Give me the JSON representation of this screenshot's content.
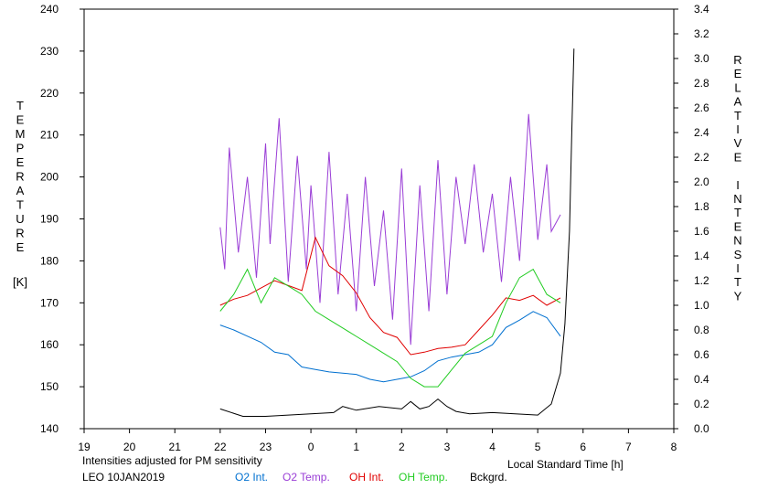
{
  "chart_data": {
    "type": "line",
    "title": "",
    "note": "Intensities adjusted for PM sensitivity",
    "station_date": "LEO 10JAN2019",
    "xlabel": "Local Standard Time [h]",
    "ylabel_left": [
      "T",
      "E",
      "M",
      "P",
      "E",
      "R",
      "A",
      "T",
      "U",
      "R",
      "E"
    ],
    "ylabel_left_unit": "[K]",
    "ylabel_right": [
      "R",
      "E",
      "L",
      "A",
      "T",
      "I",
      "V",
      "E",
      " ",
      "I",
      "N",
      "T",
      "E",
      "N",
      "S",
      "I",
      "T",
      "Y"
    ],
    "x_range": [
      19,
      32
    ],
    "x_tick_labels": [
      "19",
      "20",
      "21",
      "22",
      "23",
      "0",
      "1",
      "2",
      "3",
      "4",
      "5",
      "6",
      "7",
      "8"
    ],
    "ylim_left": [
      140,
      240
    ],
    "ylim_right": [
      0.0,
      3.4
    ],
    "y_left_ticks": [
      "140",
      "150",
      "160",
      "170",
      "180",
      "190",
      "200",
      "210",
      "220",
      "230",
      "240"
    ],
    "y_right_ticks": [
      "0.0",
      "0.2",
      "0.4",
      "0.6",
      "0.8",
      "1.0",
      "1.2",
      "1.4",
      "1.6",
      "1.8",
      "2.0",
      "2.2",
      "2.4",
      "2.6",
      "2.8",
      "3.0",
      "3.2",
      "3.4"
    ],
    "colors": {
      "o2_int": "#0070d0",
      "o2_temp": "#9a3ed6",
      "oh_int": "#e00000",
      "oh_temp": "#22cc22",
      "bckgrd": "#000000",
      "note": "#22cc22"
    },
    "series": [
      {
        "name": "O2 Int.",
        "axis": "right",
        "x": [
          22.0,
          22.3,
          22.6,
          22.9,
          23.2,
          23.5,
          23.8,
          24.1,
          24.4,
          24.7,
          25.0,
          25.3,
          25.6,
          25.9,
          26.2,
          26.5,
          26.8,
          27.1,
          27.4,
          27.7,
          28.0,
          28.3,
          28.6,
          28.9,
          29.2,
          29.5
        ],
        "y": [
          0.84,
          0.8,
          0.75,
          0.7,
          0.62,
          0.6,
          0.5,
          0.48,
          0.46,
          0.45,
          0.44,
          0.4,
          0.38,
          0.4,
          0.42,
          0.47,
          0.55,
          0.58,
          0.6,
          0.62,
          0.68,
          0.82,
          0.88,
          0.95,
          0.9,
          0.75
        ]
      },
      {
        "name": "O2 Temp.",
        "axis": "left",
        "x": [
          22.0,
          22.1,
          22.2,
          22.4,
          22.6,
          22.8,
          23.0,
          23.1,
          23.3,
          23.5,
          23.7,
          23.9,
          24.0,
          24.2,
          24.4,
          24.6,
          24.8,
          25.0,
          25.2,
          25.4,
          25.6,
          25.8,
          26.0,
          26.2,
          26.4,
          26.6,
          26.8,
          27.0,
          27.2,
          27.4,
          27.6,
          27.8,
          28.0,
          28.2,
          28.4,
          28.6,
          28.8,
          29.0,
          29.2,
          29.3,
          29.5
        ],
        "y": [
          188,
          178,
          207,
          182,
          200,
          176,
          208,
          184,
          214,
          175,
          205,
          178,
          198,
          170,
          206,
          172,
          196,
          168,
          200,
          174,
          192,
          166,
          202,
          160,
          198,
          168,
          204,
          172,
          200,
          184,
          203,
          182,
          196,
          175,
          200,
          180,
          215,
          185,
          203,
          187,
          191
        ]
      },
      {
        "name": "OH Int.",
        "axis": "right",
        "x": [
          22.0,
          22.3,
          22.6,
          22.9,
          23.2,
          23.5,
          23.8,
          24.1,
          24.4,
          24.7,
          25.0,
          25.3,
          25.6,
          25.9,
          26.2,
          26.5,
          26.8,
          27.1,
          27.4,
          27.7,
          28.0,
          28.3,
          28.6,
          28.9,
          29.2,
          29.5
        ],
        "y": [
          1.0,
          1.05,
          1.08,
          1.14,
          1.2,
          1.16,
          1.12,
          1.55,
          1.32,
          1.24,
          1.1,
          0.9,
          0.78,
          0.74,
          0.6,
          0.62,
          0.65,
          0.66,
          0.68,
          0.8,
          0.92,
          1.06,
          1.04,
          1.08,
          1.0,
          1.06
        ]
      },
      {
        "name": "OH Temp.",
        "axis": "left",
        "x": [
          22.0,
          22.3,
          22.6,
          22.9,
          23.2,
          23.5,
          23.8,
          24.1,
          24.4,
          24.7,
          25.0,
          25.3,
          25.6,
          25.9,
          26.2,
          26.5,
          26.8,
          27.1,
          27.4,
          27.7,
          28.0,
          28.3,
          28.6,
          28.9,
          29.2,
          29.5
        ],
        "y": [
          168,
          172,
          178,
          170,
          176,
          174,
          172,
          168,
          166,
          164,
          162,
          160,
          158,
          156,
          152,
          150,
          150,
          154,
          158,
          160,
          162,
          170,
          176,
          178,
          172,
          170
        ]
      },
      {
        "name": "Bckgrd.",
        "axis": "right",
        "x": [
          22.0,
          22.5,
          23.0,
          23.5,
          24.0,
          24.5,
          24.7,
          25.0,
          25.5,
          26.0,
          26.2,
          26.4,
          26.6,
          26.8,
          27.0,
          27.2,
          27.5,
          28.0,
          28.5,
          29.0,
          29.3,
          29.5,
          29.6,
          29.7,
          29.75,
          29.8
        ],
        "y": [
          0.16,
          0.1,
          0.1,
          0.11,
          0.12,
          0.13,
          0.18,
          0.15,
          0.18,
          0.16,
          0.22,
          0.16,
          0.18,
          0.24,
          0.18,
          0.14,
          0.12,
          0.13,
          0.12,
          0.11,
          0.2,
          0.45,
          0.85,
          1.6,
          2.4,
          3.08
        ]
      }
    ]
  }
}
